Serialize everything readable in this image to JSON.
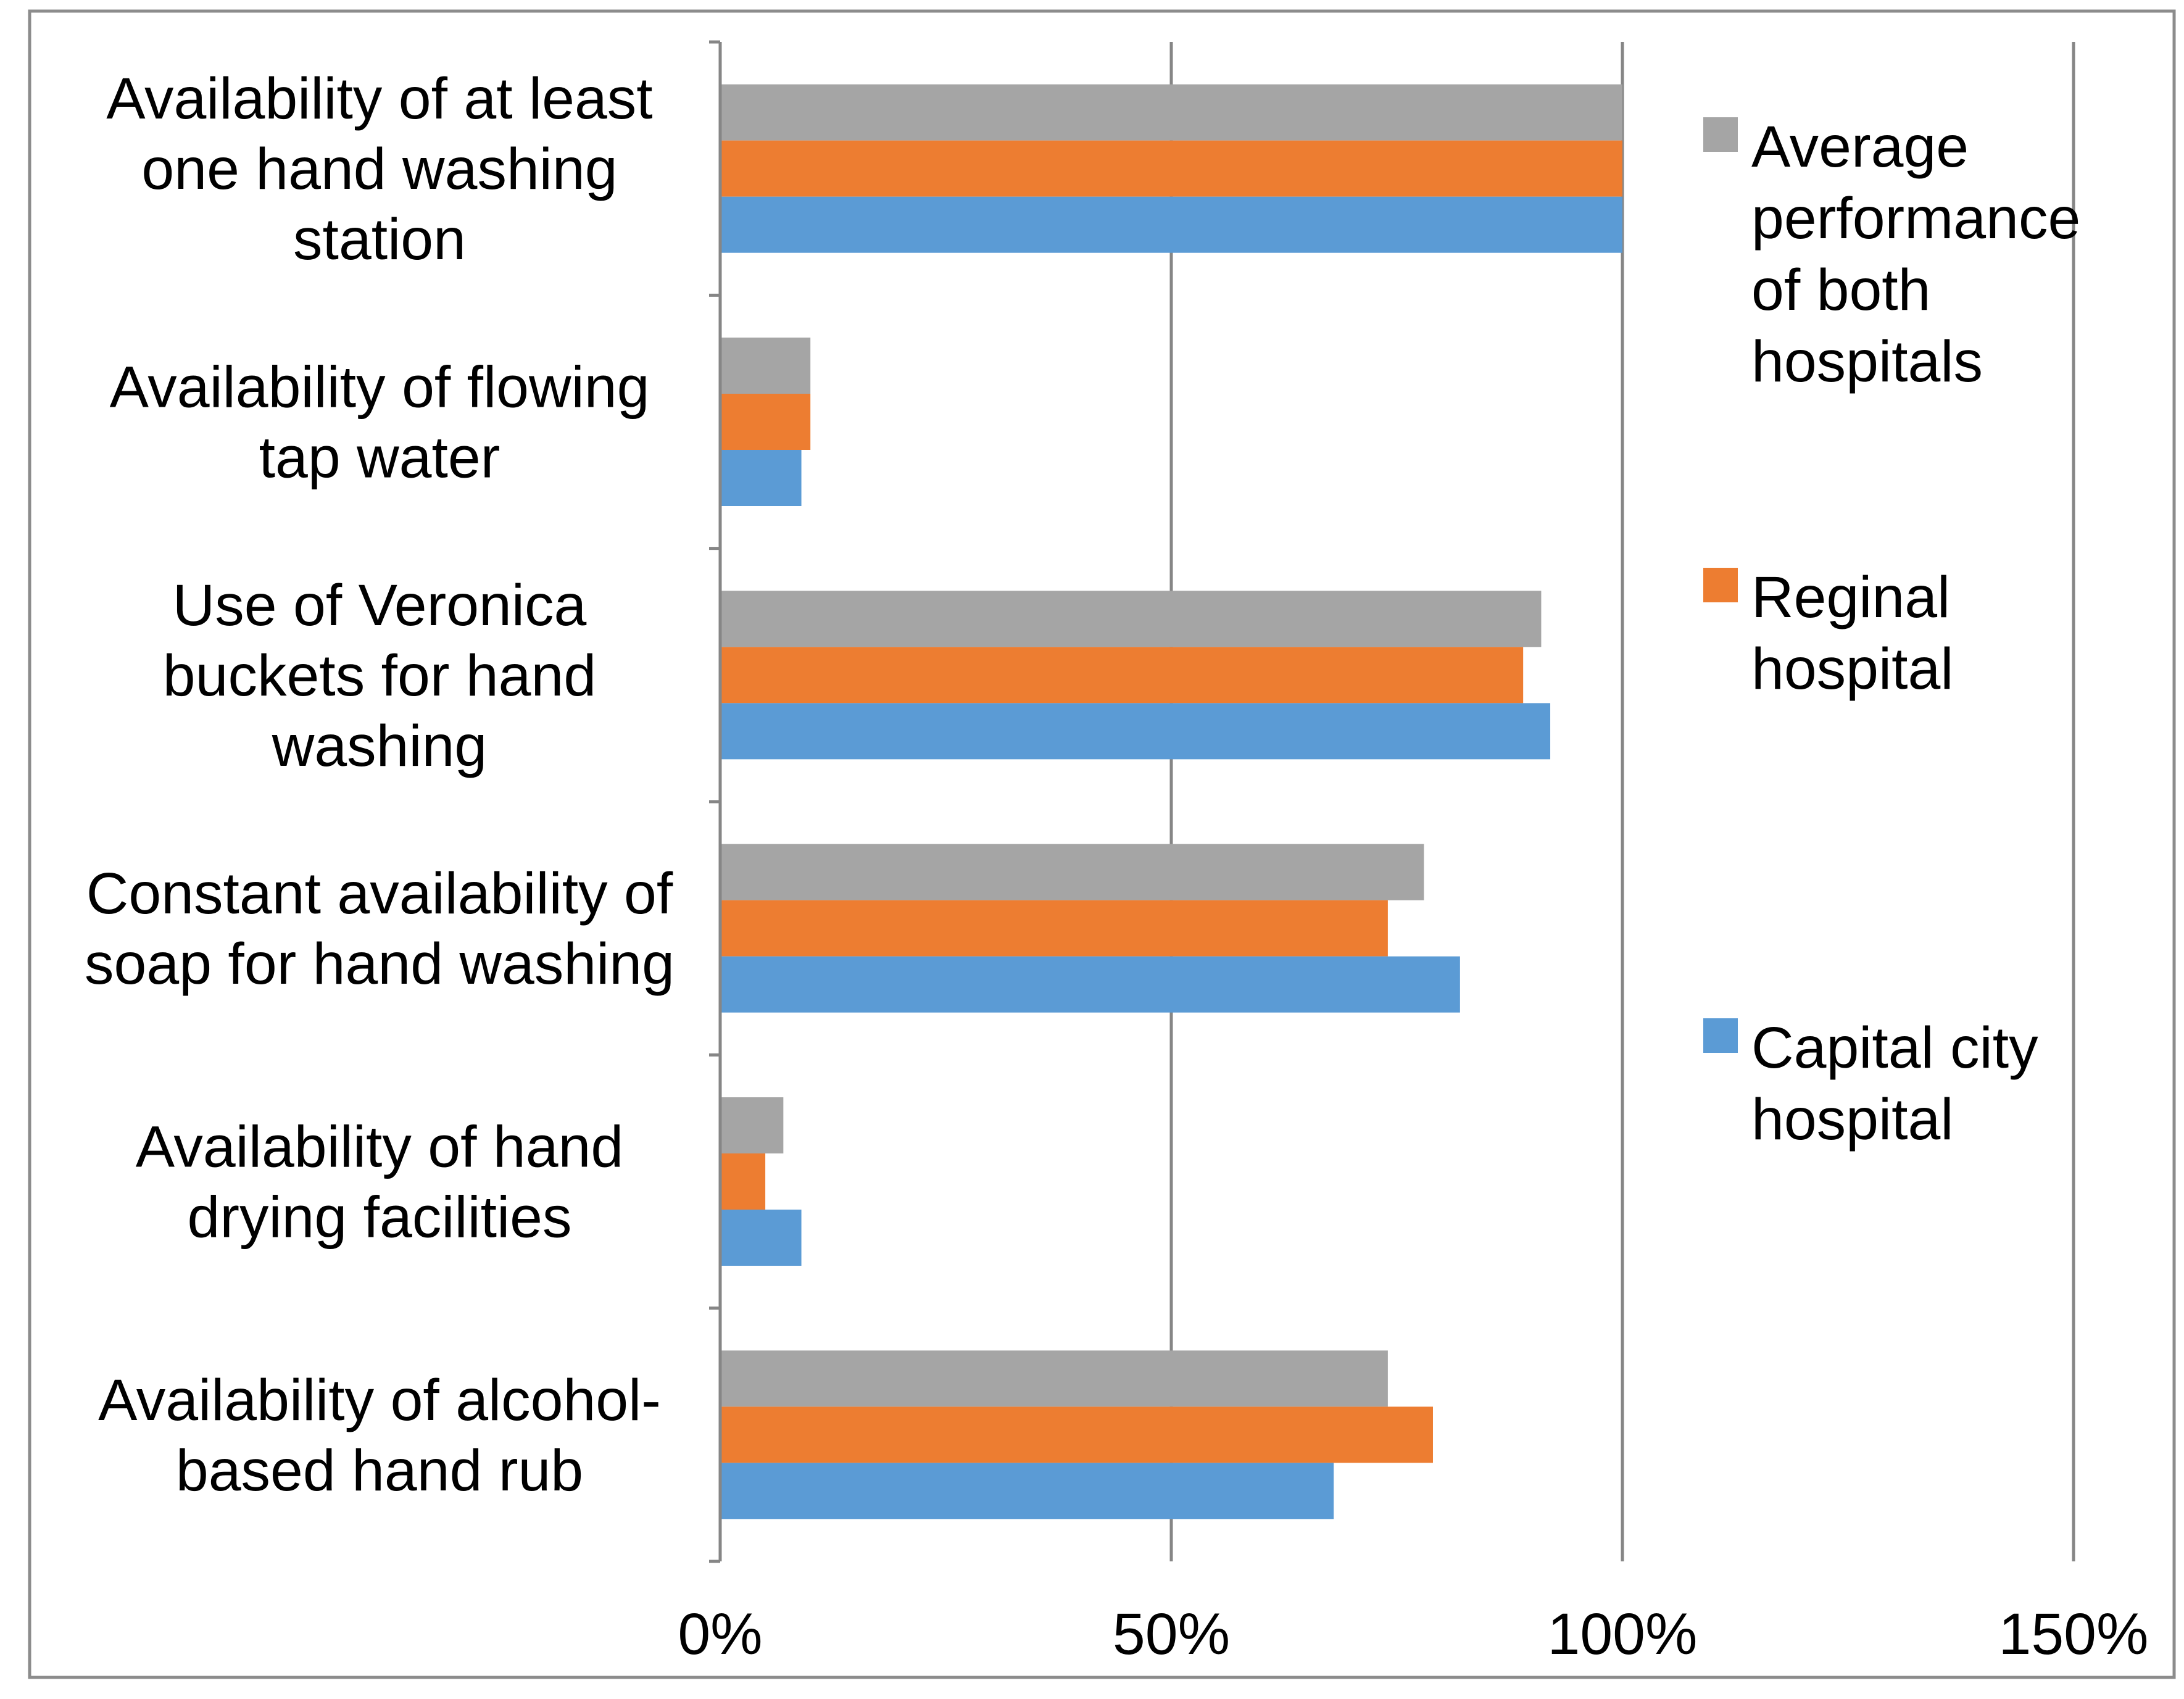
{
  "chart_data": {
    "type": "bar",
    "orientation": "horizontal",
    "title": "",
    "xlabel": "",
    "ylabel": "",
    "xlim": [
      0,
      1.5
    ],
    "grid": true,
    "legend_position": "right",
    "ticks": [
      {
        "value": 0,
        "label": "0%"
      },
      {
        "value": 0.5,
        "label": "50%"
      },
      {
        "value": 1.0,
        "label": "100%"
      },
      {
        "value": 1.5,
        "label": "150%"
      }
    ],
    "categories": [
      {
        "lines": [
          "Availability of at least",
          "one hand washing",
          "station"
        ]
      },
      {
        "lines": [
          "Availability of flowing",
          "tap water"
        ]
      },
      {
        "lines": [
          "Use of Veronica",
          "buckets for hand",
          "washing"
        ]
      },
      {
        "lines": [
          "Constant availability of",
          "soap for hand washing"
        ]
      },
      {
        "lines": [
          "Availability of hand",
          "drying facilities"
        ]
      },
      {
        "lines": [
          "Availability of alcohol-",
          "based hand rub"
        ]
      }
    ],
    "series": [
      {
        "name_lines": [
          "Average",
          "performance",
          "of both",
          "hospitals"
        ],
        "color": "#A5A5A5",
        "values": [
          1.0,
          0.1,
          0.91,
          0.78,
          0.07,
          0.74
        ]
      },
      {
        "name_lines": [
          "Reginal",
          "hospital"
        ],
        "color": "#ED7D31",
        "values": [
          1.0,
          0.1,
          0.89,
          0.74,
          0.05,
          0.79
        ]
      },
      {
        "name_lines": [
          "Capital city",
          "hospital"
        ],
        "color": "#5B9BD5",
        "values": [
          1.0,
          0.09,
          0.92,
          0.82,
          0.09,
          0.68
        ]
      }
    ]
  }
}
